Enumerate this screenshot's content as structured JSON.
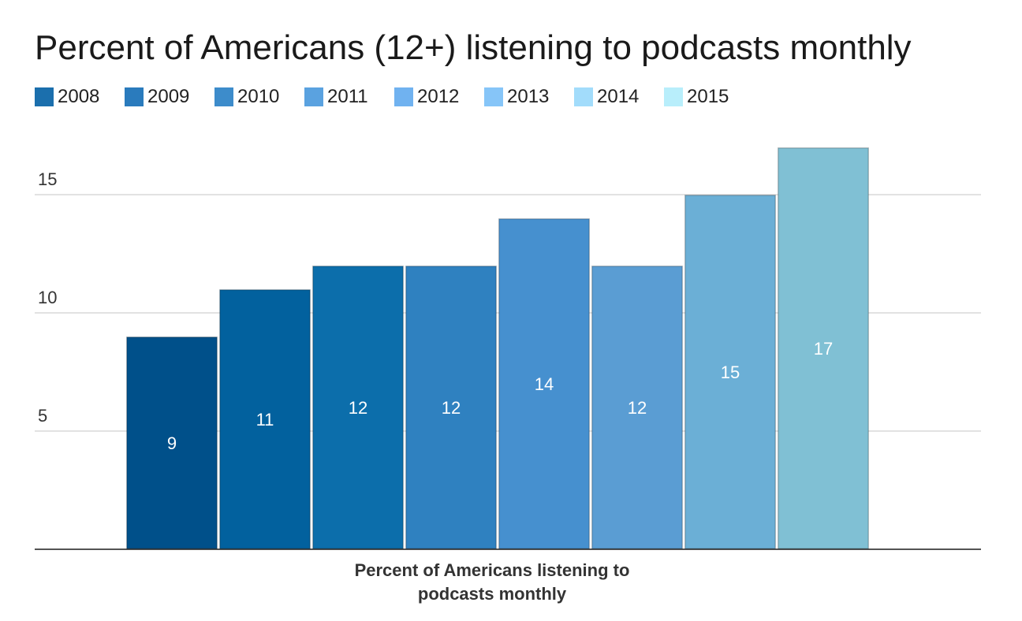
{
  "chart_data": {
    "type": "bar",
    "title": "Percent of Americans (12+) listening to podcasts monthly",
    "xlabel": [
      "Percent of Americans listening to",
      "podcasts monthly"
    ],
    "ylabel": "",
    "categories": [
      "Percent of Americans listening to podcasts monthly"
    ],
    "ylim": [
      0,
      17
    ],
    "yticks": [
      5,
      10,
      15
    ],
    "grid": true,
    "legend_position": "top-left",
    "series": [
      {
        "name": "2008",
        "values": [
          9
        ],
        "color": "#00508a",
        "legend_color": "#1b6fad"
      },
      {
        "name": "2009",
        "values": [
          11
        ],
        "color": "#02619e",
        "legend_color": "#2a7bbd"
      },
      {
        "name": "2010",
        "values": [
          12
        ],
        "color": "#0c6eab",
        "legend_color": "#3d8ccb"
      },
      {
        "name": "2011",
        "values": [
          12
        ],
        "color": "#2f81c0",
        "legend_color": "#5aa2e0"
      },
      {
        "name": "2012",
        "values": [
          14
        ],
        "color": "#4690cf",
        "legend_color": "#70b2f0"
      },
      {
        "name": "2013",
        "values": [
          12
        ],
        "color": "#5a9dd3",
        "legend_color": "#86c5f8"
      },
      {
        "name": "2014",
        "values": [
          15
        ],
        "color": "#6bafd6",
        "legend_color": "#a2dcfb"
      },
      {
        "name": "2015",
        "values": [
          17
        ],
        "color": "#80c0d4",
        "legend_color": "#b8eefb"
      }
    ]
  }
}
